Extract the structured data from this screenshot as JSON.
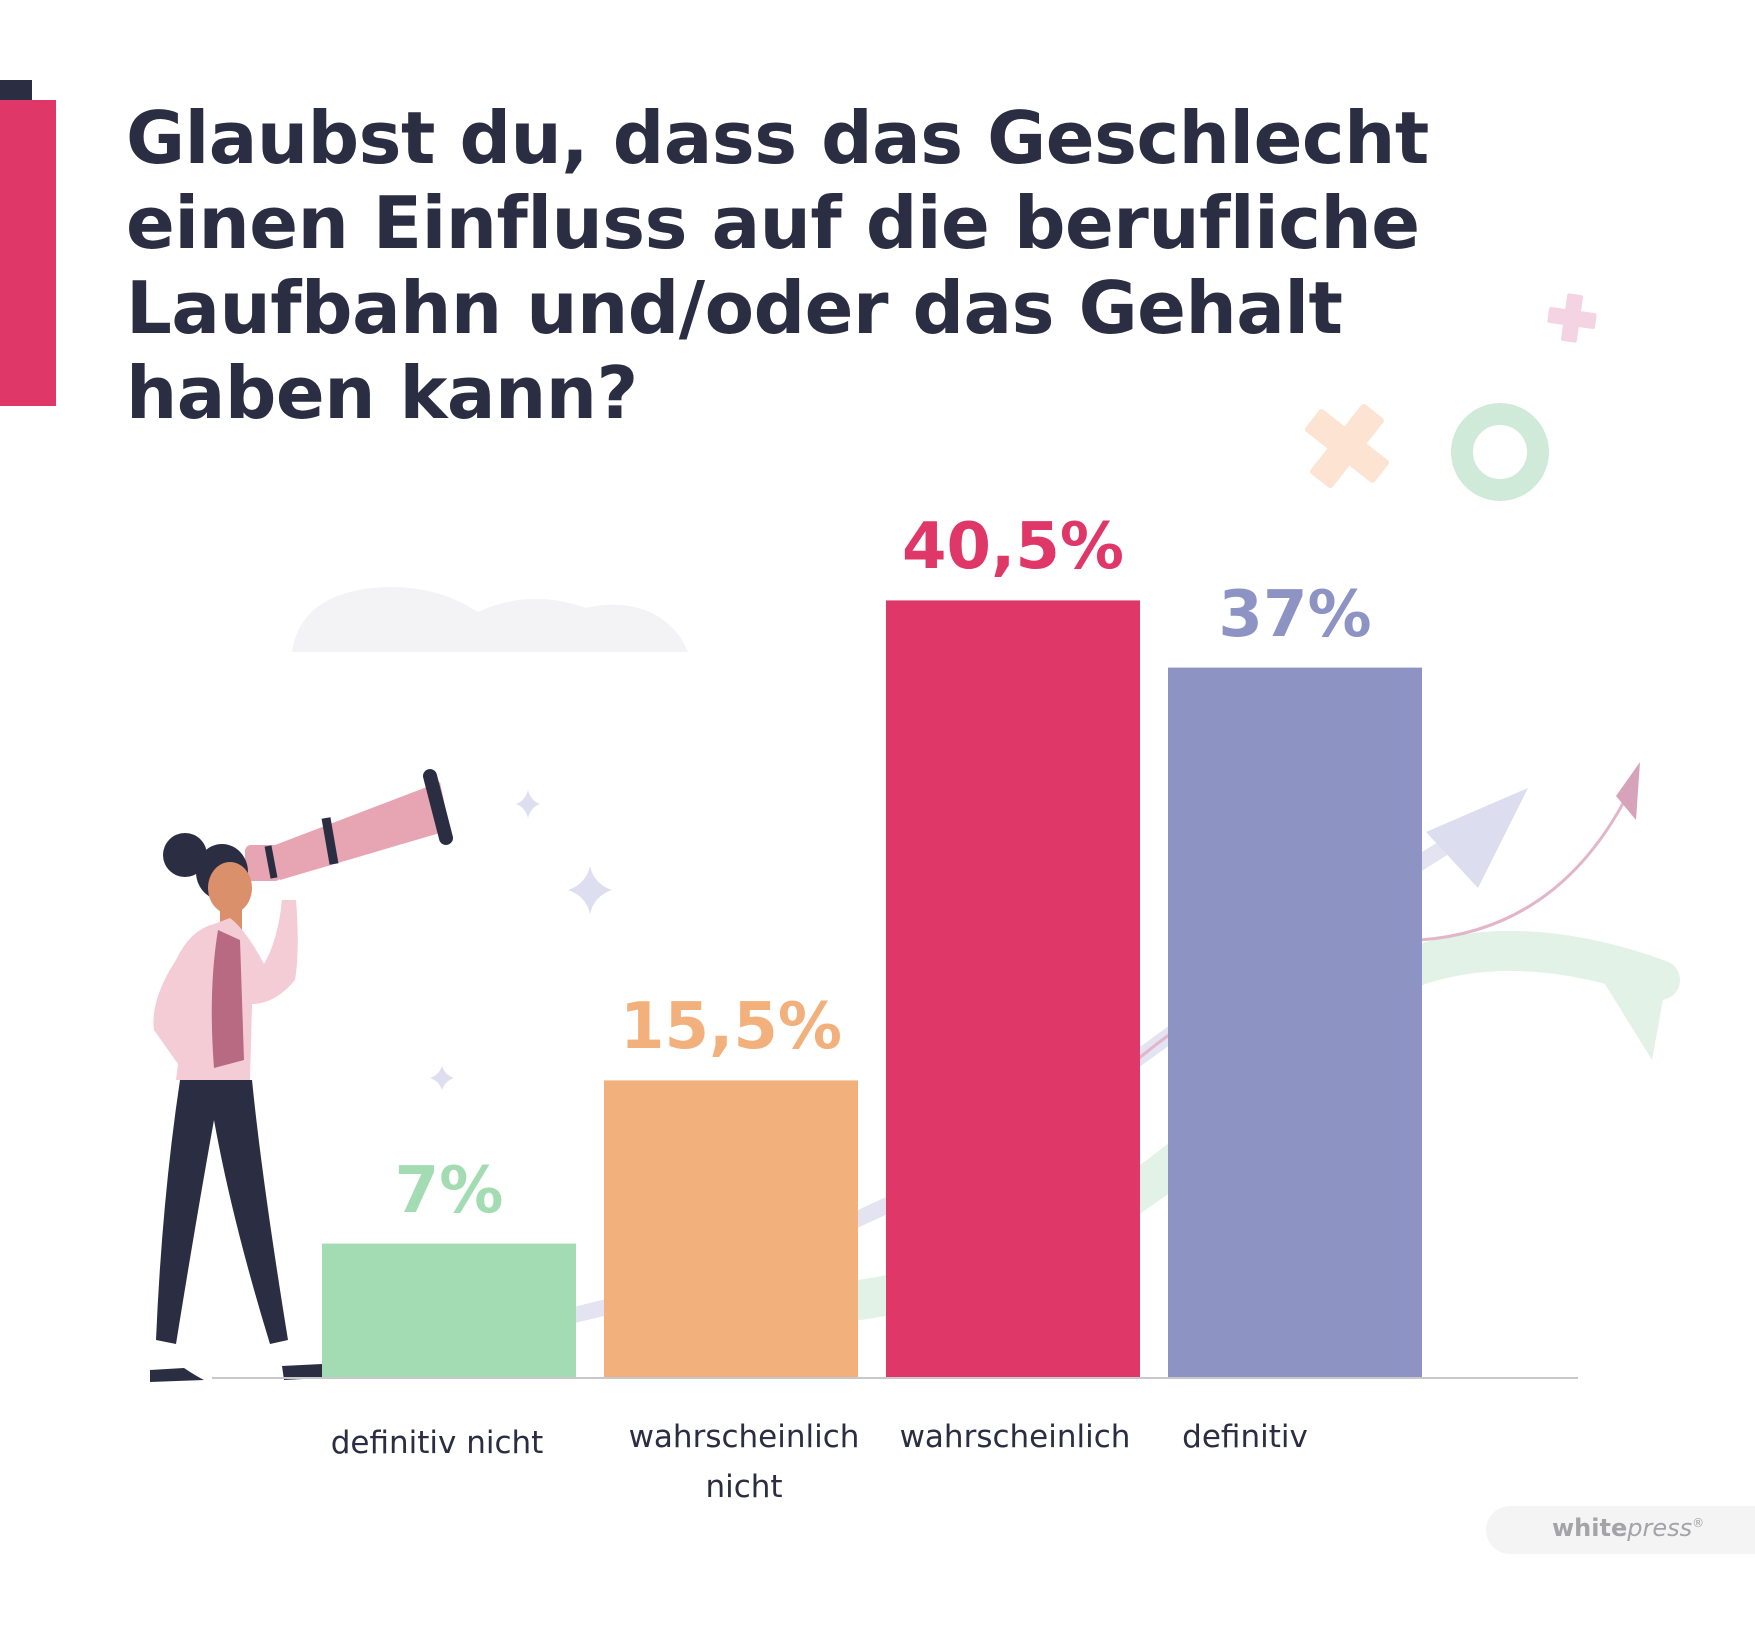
{
  "chart_data": {
    "type": "bar",
    "title": "Glaubst du, dass das Geschlecht einen Einfluss auf die berufliche Laufbahn und/oder das Gehalt haben kann?",
    "categories": [
      "definitiv nicht",
      "wahrscheinlich nicht",
      "wahrscheinlich",
      "definitiv"
    ],
    "values": [
      7,
      15.5,
      40.5,
      37
    ],
    "value_labels": [
      "7%",
      "15,5%",
      "40,5%",
      "37%"
    ],
    "unit": "%",
    "colors": [
      "#a3dbb2",
      "#f2b07c",
      "#de3768",
      "#8d94c3"
    ],
    "ylim": [
      0,
      45
    ],
    "grid": false,
    "legend": "none"
  },
  "category_labels": {
    "c0": "definitiv nicht",
    "c1a": "wahrscheinlich",
    "c1b": "nicht",
    "c2": "wahrscheinlich",
    "c3": "definitiv"
  },
  "logo": {
    "bold": "white",
    "italic": "press",
    "mark": "®"
  },
  "decor_icons": [
    "woman-with-telescope-illustration",
    "cloud-icon",
    "sparkle-icon",
    "plus-icon",
    "ring-icon",
    "arrow-icon"
  ]
}
